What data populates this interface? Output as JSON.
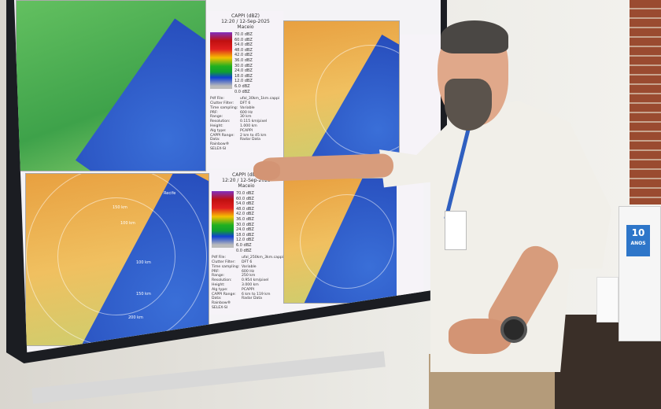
{
  "panels": [
    {
      "title": "CAPPI (dBZ)",
      "datetime": "12:20 / 12-Sep-2025",
      "site": "Maceio",
      "scale": [
        "70.0 dBZ",
        "60.0 dBZ",
        "54.0 dBZ",
        "48.0 dBZ",
        "42.0 dBZ",
        "36.0 dBZ",
        "30.0 dBZ",
        "24.0 dBZ",
        "18.0 dBZ",
        "12.0 dBZ",
        "6.0 dBZ",
        "0.0 dBZ"
      ],
      "info": [
        [
          "Pdf File:",
          "ufal_30km_1km.cappi"
        ],
        [
          "Clutter Filter:",
          "DFT 6"
        ],
        [
          "Time sampling:",
          "Variable"
        ],
        [
          "PRF:",
          "600 Hz"
        ],
        [
          "Range:",
          "30 km"
        ],
        [
          "Resolution:",
          "0.115 km/pixel"
        ],
        [
          "Height:",
          "1.000 km"
        ],
        [
          "Alg type:",
          "PCAPPI"
        ],
        [
          "CAPPI Range:",
          "2 km to 45 km"
        ],
        [
          "Data:",
          "Radar Data"
        ],
        [
          "Rainbow® SELEX-SI",
          ""
        ]
      ]
    },
    {
      "title": "CAPPI (dBZ)",
      "datetime": "12:20 / 12-Sep-2025",
      "site": "Maceio",
      "scale": [
        "70.0 dBZ",
        "60.0 dBZ",
        "54.0 dBZ",
        "48.0 dBZ",
        "42.0 dBZ",
        "36.0 dBZ",
        "30.0 dBZ",
        "24.0 dBZ",
        "18.0 dBZ",
        "12.0 dBZ",
        "6.0 dBZ",
        "0.0 dBZ"
      ],
      "info": [
        [
          "Pdf File:",
          "ufal_250km_3km.cappi"
        ],
        [
          "Clutter Filter:",
          "DFT 6"
        ],
        [
          "Time sampling:",
          "Variable"
        ],
        [
          "PRF:",
          "600 Hz"
        ],
        [
          "Range:",
          "250 km"
        ],
        [
          "Resolution:",
          "0.954 km/pixel"
        ],
        [
          "Height:",
          "3.000 km"
        ],
        [
          "Alg type:",
          "PCAPPI"
        ],
        [
          "CAPPI Range:",
          "6 km to 119 km"
        ],
        [
          "Data:",
          "Radar Data"
        ],
        [
          "Rainbow® SELEX-SI",
          ""
        ]
      ]
    }
  ],
  "map_labels": {
    "ring_labels": [
      "150 km",
      "100 km",
      "50 km",
      "100 km",
      "150 km",
      "200 km"
    ],
    "city": "Recife"
  },
  "sticker": {
    "number": "10",
    "text": "ANOS"
  }
}
